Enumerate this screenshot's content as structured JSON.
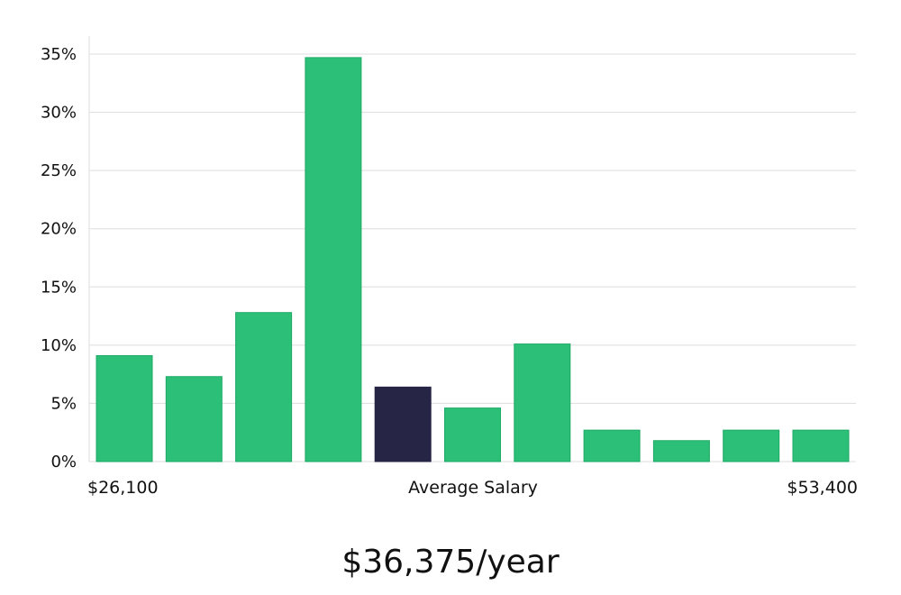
{
  "chart_data": {
    "type": "bar",
    "values": [
      9.1,
      7.3,
      12.8,
      34.7,
      6.4,
      4.6,
      10.1,
      2.7,
      1.8,
      2.7,
      2.7
    ],
    "highlight_index": 4,
    "ylim": [
      0,
      35
    ],
    "yticks": [
      "0%",
      "5%",
      "10%",
      "15%",
      "20%",
      "25%",
      "30%",
      "35%"
    ],
    "ytick_values": [
      0,
      5,
      10,
      15,
      20,
      25,
      30,
      35
    ],
    "x_min_label": "$26,100",
    "x_center_label": "Average Salary",
    "x_max_label": "$53,400",
    "grid": true,
    "colors": {
      "bar": "#2bbf77",
      "bar_border": "#1faa65",
      "highlight": "#272546",
      "grid": "#dddddd"
    }
  },
  "headline": "$36,375/year"
}
